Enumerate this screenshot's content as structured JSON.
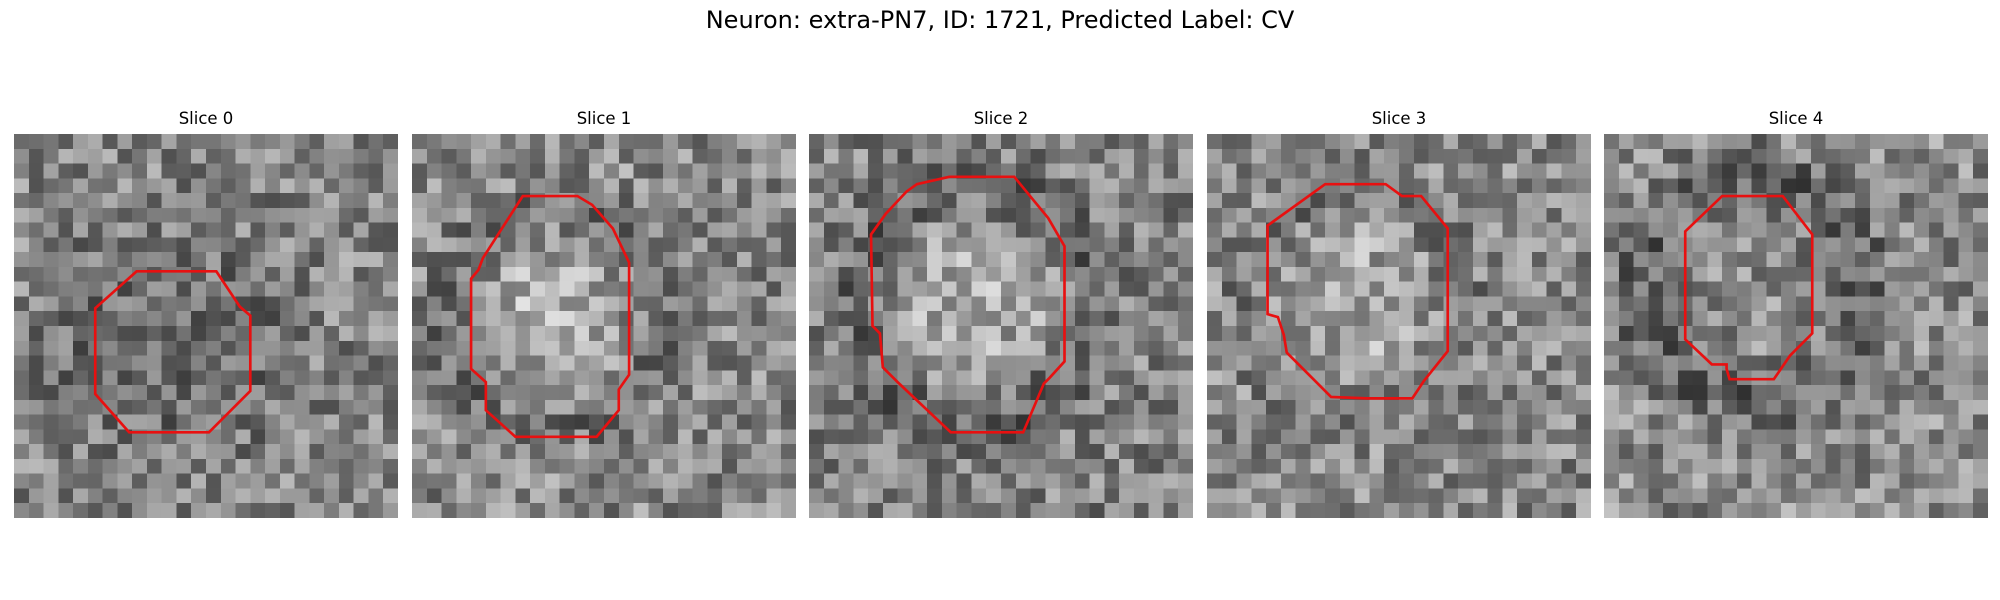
{
  "figure": {
    "suptitle": "Neuron: extra-PN7, ID: 1721, Predicted Label: CV"
  },
  "colors": {
    "outline": "#e81010",
    "background": "#ffffff"
  },
  "grid_size": 26,
  "panels": [
    {
      "title": "Slice 0",
      "outline": [
        [
          8.3,
          9.3
        ],
        [
          13.7,
          9.3
        ],
        [
          15.3,
          11.7
        ],
        [
          16.0,
          12.3
        ],
        [
          16.0,
          17.4
        ],
        [
          13.2,
          20.2
        ],
        [
          7.8,
          20.2
        ],
        [
          5.5,
          17.6
        ],
        [
          5.5,
          11.8
        ]
      ],
      "blob": {
        "cx": 10.5,
        "cy": 14.5,
        "r": 5.5,
        "gain": -40
      },
      "ring": {
        "cx": 10.5,
        "cy": 14.5,
        "r": 6.5,
        "w": 1.0,
        "gain": 0
      },
      "bias": 0,
      "seed": 11
    },
    {
      "title": "Slice 1",
      "outline": [
        [
          7.5,
          4.2
        ],
        [
          11.2,
          4.2
        ],
        [
          12.2,
          4.8
        ],
        [
          13.6,
          6.4
        ],
        [
          14.7,
          8.7
        ],
        [
          14.7,
          16.3
        ],
        [
          14.0,
          17.3
        ],
        [
          14.0,
          18.7
        ],
        [
          12.5,
          20.5
        ],
        [
          7.0,
          20.5
        ],
        [
          5.0,
          18.7
        ],
        [
          5.0,
          16.8
        ],
        [
          4.0,
          15.9
        ],
        [
          4.0,
          9.8
        ],
        [
          4.5,
          9.2
        ],
        [
          4.8,
          8.4
        ]
      ],
      "blob": {
        "cx": 9.5,
        "cy": 12.5,
        "r": 5.5,
        "gain": 40
      },
      "ring": {
        "cx": 9.5,
        "cy": 12.5,
        "r": 7.2,
        "w": 1.4,
        "gain": -40
      },
      "bias": 0,
      "seed": 23
    },
    {
      "title": "Slice 2",
      "outline": [
        [
          7.3,
          3.4
        ],
        [
          9.5,
          2.9
        ],
        [
          13.9,
          2.9
        ],
        [
          14.8,
          4.0
        ],
        [
          16.2,
          5.7
        ],
        [
          17.3,
          7.6
        ],
        [
          17.3,
          15.4
        ],
        [
          16.3,
          16.5
        ],
        [
          15.9,
          16.9
        ],
        [
          14.5,
          20.2
        ],
        [
          9.6,
          20.2
        ],
        [
          6.0,
          16.8
        ],
        [
          5.0,
          15.8
        ],
        [
          4.8,
          13.5
        ],
        [
          4.3,
          13.0
        ],
        [
          4.2,
          6.8
        ],
        [
          5.2,
          5.4
        ],
        [
          6.6,
          3.9
        ]
      ],
      "blob": {
        "cx": 11.0,
        "cy": 11.5,
        "r": 6.5,
        "gain": 45
      },
      "ring": {
        "cx": 11.0,
        "cy": 11.5,
        "r": 8.0,
        "w": 1.5,
        "gain": -45
      },
      "bias": -10,
      "seed": 37
    },
    {
      "title": "Slice 3",
      "outline": [
        [
          8.0,
          3.4
        ],
        [
          12.1,
          3.4
        ],
        [
          13.2,
          4.2
        ],
        [
          14.5,
          4.2
        ],
        [
          16.3,
          6.4
        ],
        [
          16.3,
          14.7
        ],
        [
          14.7,
          16.7
        ],
        [
          13.9,
          17.9
        ],
        [
          10.8,
          17.9
        ],
        [
          8.4,
          17.8
        ],
        [
          5.4,
          14.8
        ],
        [
          5.2,
          13.6
        ],
        [
          4.8,
          12.4
        ],
        [
          4.1,
          12.2
        ],
        [
          4.1,
          6.2
        ]
      ],
      "blob": {
        "cx": 10.0,
        "cy": 11.5,
        "r": 5.5,
        "gain": 35
      },
      "ring": {
        "cx": 10.0,
        "cy": 11.5,
        "r": 7.3,
        "w": 1.3,
        "gain": -30
      },
      "bias": 0,
      "seed": 53
    },
    {
      "title": "Slice 4",
      "outline": [
        [
          8.0,
          4.2
        ],
        [
          12.1,
          4.2
        ],
        [
          14.1,
          6.8
        ],
        [
          14.1,
          13.5
        ],
        [
          12.6,
          15.0
        ],
        [
          11.5,
          16.6
        ],
        [
          8.5,
          16.6
        ],
        [
          8.3,
          15.9
        ],
        [
          8.3,
          15.6
        ],
        [
          7.3,
          15.6
        ],
        [
          5.5,
          13.9
        ],
        [
          5.5,
          6.6
        ]
      ],
      "blob": {
        "cx": 10.0,
        "cy": 10.5,
        "r": 4.5,
        "gain": 0
      },
      "ring": {
        "cx": 10.0,
        "cy": 10.5,
        "r": 7.5,
        "w": 1.6,
        "gain": -40
      },
      "bias": 5,
      "seed": 71
    }
  ]
}
